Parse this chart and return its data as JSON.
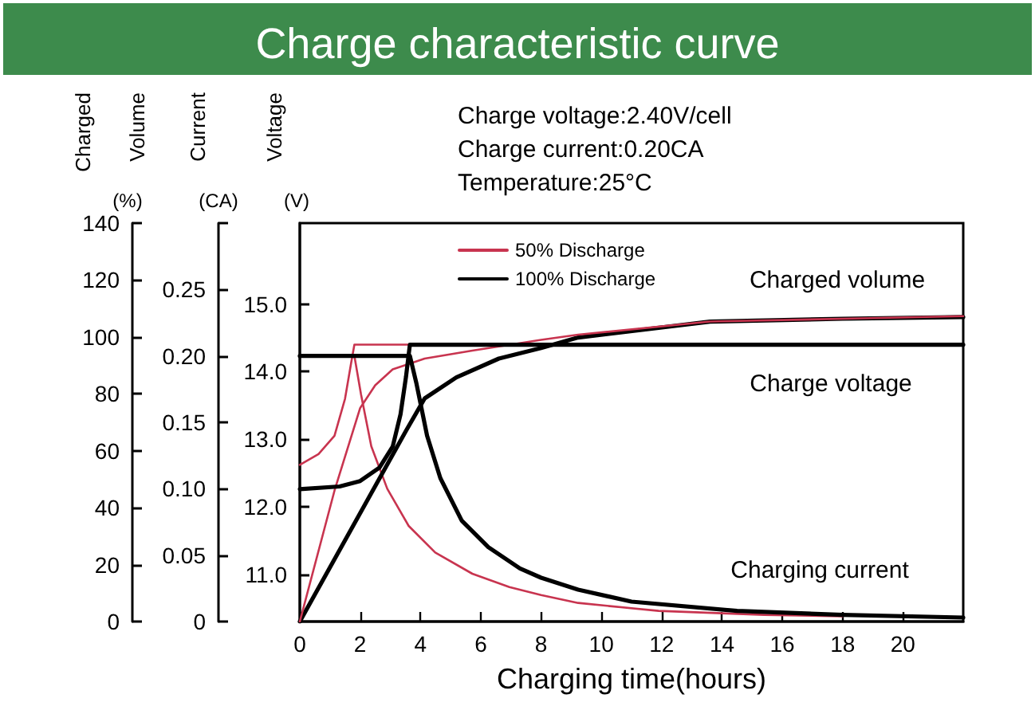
{
  "chart_data": {
    "type": "line",
    "title": "Charge characteristic curve",
    "xlabel": "Charging time(hours)",
    "ylabel": "Voltage(V)",
    "y2label": "Current(CA)",
    "y3label": "Charged Volume(%)",
    "annotations": [
      "Charge voltage:2.40V/cell",
      "Charge current:0.20CA",
      "Temperature:25°C",
      "Charged volume",
      "Charge voltage",
      "Charging current"
    ],
    "xlim": [
      0,
      22
    ],
    "xticks": [
      0,
      2,
      4,
      6,
      8,
      10,
      12,
      14,
      16,
      18,
      20
    ],
    "ylim": [
      10.3,
      16.2
    ],
    "yticks": [
      {
        "value": 11,
        "label": "11.0"
      },
      {
        "value": 12,
        "label": "12.0"
      },
      {
        "value": 13,
        "label": "13.0"
      },
      {
        "value": 14,
        "label": "14.0"
      },
      {
        "value": 15,
        "label": "15.0"
      }
    ],
    "y2lim": [
      0,
      0.3
    ],
    "y2ticks": [
      0,
      0.05,
      {
        "value": 0.1,
        "label": "0.10"
      },
      0.15,
      {
        "value": 0.2,
        "label": "0.20"
      },
      0.25,
      {
        "value": 0.3,
        "label": null
      }
    ],
    "y3lim": [
      0,
      140
    ],
    "y3ticks": [
      0,
      20,
      40,
      60,
      80,
      100,
      120,
      140
    ],
    "legend": "top",
    "grid": false,
    "series": [
      {
        "name": "50% Discharge",
        "color": "#c8344f",
        "x": [
          0,
          0.62,
          1.15,
          1.5,
          1.71,
          1.81,
          3.65
        ],
        "values": [
          12.62,
          12.78,
          13.05,
          13.6,
          14.15,
          14.4,
          14.4
        ]
      },
      {
        "color": "#c8344f",
        "axis": "y2",
        "x": [
          1.81,
          2.03,
          2.37,
          2.9,
          3.61,
          4.49,
          5.72,
          6.95,
          8.0,
          9.23,
          11.9,
          15.4,
          18
        ],
        "values": [
          0.2,
          0.171,
          0.132,
          0.1,
          0.072,
          0.052,
          0.036,
          0.026,
          0.02,
          0.014,
          0.008,
          0.005,
          0.004
        ]
      },
      {
        "name": "100% Discharge",
        "color": "#000000",
        "axis": "y3",
        "x": [
          0,
          3.52,
          4.14,
          5.19,
          6.6,
          8.0,
          9.23,
          13.6,
          18,
          22
        ],
        "values": [
          0,
          67,
          78.4,
          85.8,
          92.4,
          96.1,
          99.8,
          105.4,
          106.4,
          107
        ]
      },
      {
        "color": "#c8344f",
        "axis": "y3",
        "x": [
          0,
          1.15,
          2.0,
          2.5,
          3.08,
          4.14,
          5.72,
          8.0,
          9.23,
          13.6,
          18,
          22
        ],
        "values": [
          0,
          46,
          75,
          83,
          88.6,
          92.4,
          95.2,
          99,
          100.8,
          105.4,
          106.4,
          107.3
        ]
      },
      {
        "color": "#000000",
        "x": [
          0,
          1.32,
          2.0,
          2.64,
          3.08,
          3.34,
          3.52,
          3.65,
          22
        ],
        "values": [
          12.26,
          12.3,
          12.38,
          12.58,
          12.89,
          13.37,
          13.92,
          14.4,
          14.4
        ]
      },
      {
        "color": "#000000",
        "axis": "y2",
        "x": [
          0,
          3.65,
          3.87,
          4.22,
          4.66,
          5.37,
          6.25,
          7.3,
          8.0,
          9.23,
          11,
          14.5,
          18,
          22
        ],
        "values": [
          0.2,
          0.2,
          0.179,
          0.14,
          0.108,
          0.076,
          0.056,
          0.04,
          0.033,
          0.024,
          0.015,
          0.008,
          0.005,
          0.003
        ]
      }
    ]
  }
}
